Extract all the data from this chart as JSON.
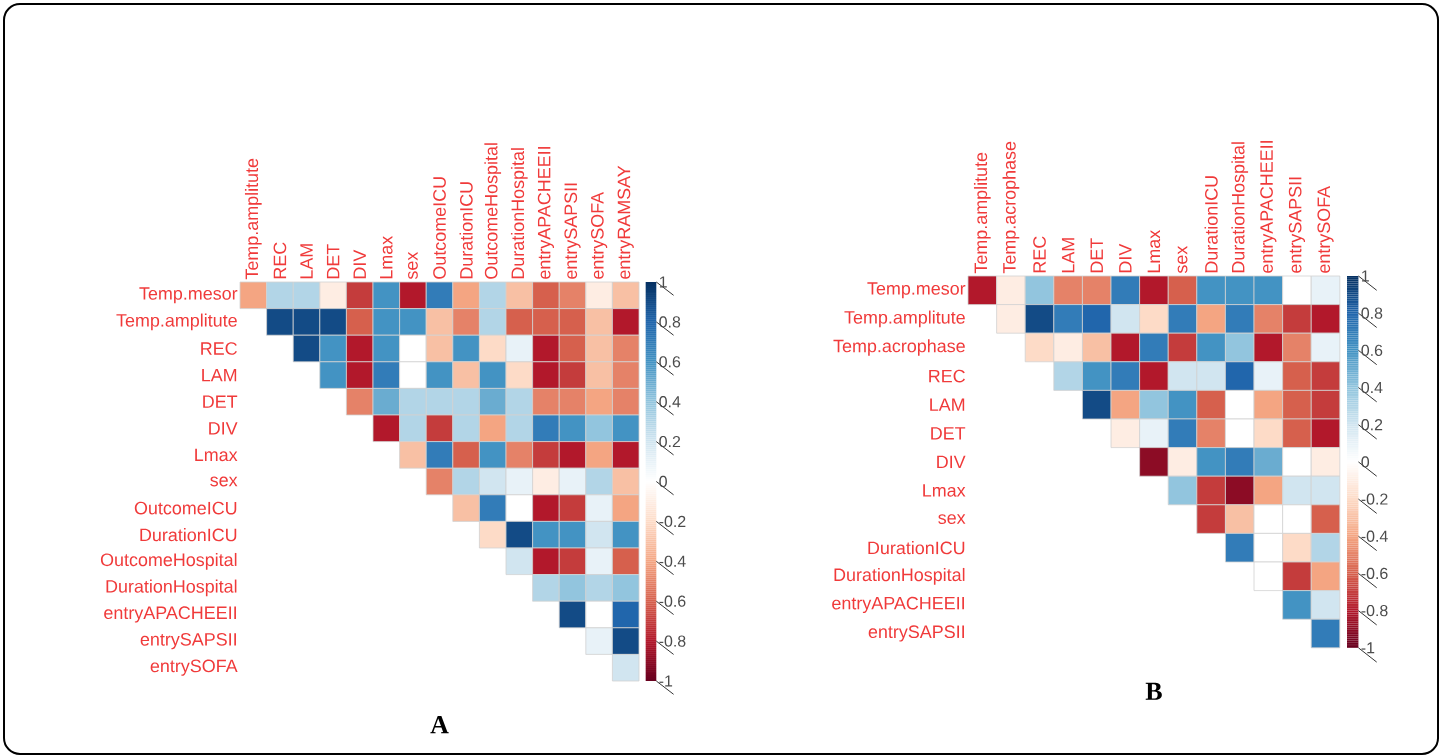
{
  "chart_data": [
    {
      "type": "heatmap",
      "categories": [
        "Temp.amplitute",
        "REC",
        "LAM",
        "DET",
        "DIV",
        "Lmax",
        "sex",
        "OutcomeICU",
        "DurationICU",
        "OutcomeHospital",
        "DurationHospital",
        "entryAPACHEEII",
        "entrySAPSII",
        "entrySOFA",
        "entryRAMSAY"
      ],
      "y_categories": [
        "Temp.mesor",
        "Temp.amplitute",
        "REC",
        "LAM",
        "DET",
        "DIV",
        "Lmax",
        "sex",
        "OutcomeICU",
        "DurationICU",
        "OutcomeHospital",
        "DurationHospital",
        "entryAPACHEEII",
        "entrySAPSII",
        "entrySOFA"
      ],
      "cells": [
        [
          -0.4,
          0.3,
          0.3,
          -0.1,
          -0.7,
          0.6,
          -0.8,
          0.7,
          -0.4,
          0.3,
          -0.3,
          -0.6,
          -0.5,
          -0.1,
          -0.3
        ],
        [
          null,
          0.9,
          0.9,
          0.9,
          -0.6,
          0.6,
          0.6,
          -0.3,
          -0.5,
          0.3,
          -0.6,
          -0.6,
          -0.6,
          -0.3,
          -0.8
        ],
        [
          null,
          null,
          0.9,
          0.6,
          -0.8,
          0.6,
          0,
          -0.3,
          0.6,
          -0.2,
          0.1,
          -0.8,
          -0.6,
          -0.3,
          -0.5
        ],
        [
          null,
          null,
          null,
          0.6,
          -0.8,
          0.7,
          0,
          0.6,
          -0.3,
          0.6,
          -0.2,
          -0.8,
          -0.7,
          -0.3,
          -0.5
        ],
        [
          null,
          null,
          null,
          null,
          -0.5,
          0.5,
          0.3,
          0.3,
          0.3,
          0.5,
          0.3,
          -0.5,
          -0.5,
          -0.4,
          -0.5
        ],
        [
          null,
          null,
          null,
          null,
          null,
          -0.8,
          0.3,
          -0.7,
          0.3,
          -0.4,
          0.3,
          0.7,
          0.6,
          0.4,
          0.6
        ],
        [
          null,
          null,
          null,
          null,
          null,
          null,
          -0.3,
          0.7,
          -0.6,
          0.6,
          -0.5,
          -0.7,
          -0.8,
          -0.4,
          -0.8
        ],
        [
          null,
          null,
          null,
          null,
          null,
          null,
          null,
          -0.5,
          0.3,
          0.2,
          0.1,
          -0.1,
          0.1,
          0.3,
          -0.3
        ],
        [
          null,
          null,
          null,
          null,
          null,
          null,
          null,
          null,
          -0.3,
          0.7,
          0,
          -0.8,
          -0.7,
          0.1,
          -0.4
        ],
        [
          null,
          null,
          null,
          null,
          null,
          null,
          null,
          null,
          null,
          -0.2,
          0.9,
          0.6,
          0.6,
          0.2,
          0.6
        ],
        [
          null,
          null,
          null,
          null,
          null,
          null,
          null,
          null,
          null,
          null,
          0.2,
          -0.8,
          -0.7,
          0.1,
          -0.6
        ],
        [
          null,
          null,
          null,
          null,
          null,
          null,
          null,
          null,
          null,
          null,
          null,
          0.3,
          0.4,
          0.3,
          0.4
        ],
        [
          null,
          null,
          null,
          null,
          null,
          null,
          null,
          null,
          null,
          null,
          null,
          null,
          0.9,
          0,
          0.8
        ],
        [
          null,
          null,
          null,
          null,
          null,
          null,
          null,
          null,
          null,
          null,
          null,
          null,
          null,
          0.1,
          0.9
        ],
        [
          null,
          null,
          null,
          null,
          null,
          null,
          null,
          null,
          null,
          null,
          null,
          null,
          null,
          null,
          0.2
        ]
      ],
      "clim": [
        -1,
        1
      ],
      "cticks": [
        -1,
        -0.8,
        -0.6,
        -0.4,
        -0.2,
        0,
        0.2,
        0.4,
        0.6,
        0.8,
        1
      ],
      "annotations": [
        "A"
      ]
    },
    {
      "type": "heatmap",
      "categories": [
        "Temp.amplitute",
        "Temp.acrophase",
        "REC",
        "LAM",
        "DET",
        "DIV",
        "Lmax",
        "sex",
        "DurationICU",
        "DurationHospital",
        "entryAPACHEEII",
        "entrySAPSII",
        "entrySOFA"
      ],
      "y_categories": [
        "Temp.mesor",
        "Temp.amplitute",
        "Temp.acrophase",
        "REC",
        "LAM",
        "DET",
        "DIV",
        "Lmax",
        "sex",
        "DurationICU",
        "DurationHospital",
        "entryAPACHEEII",
        "entrySAPSII"
      ],
      "cells": [
        [
          -0.8,
          -0.1,
          0.4,
          -0.5,
          -0.5,
          0.7,
          -0.8,
          -0.6,
          0.6,
          0.6,
          0.6,
          0,
          0.1
        ],
        [
          null,
          -0.1,
          0.9,
          0.7,
          0.8,
          0.2,
          -0.2,
          0.7,
          -0.4,
          0.7,
          -0.5,
          -0.7,
          -0.8
        ],
        [
          null,
          null,
          -0.2,
          -0.1,
          -0.3,
          -0.8,
          0.7,
          -0.7,
          0.6,
          0.4,
          -0.8,
          -0.5,
          0.1
        ],
        [
          null,
          null,
          null,
          0.3,
          0.6,
          0.7,
          -0.8,
          0.2,
          0.2,
          0.8,
          0.1,
          -0.6,
          -0.7
        ],
        [
          null,
          null,
          null,
          null,
          0.9,
          -0.4,
          0.4,
          0.6,
          -0.6,
          0,
          -0.4,
          -0.6,
          -0.7
        ],
        [
          null,
          null,
          null,
          null,
          null,
          -0.1,
          0.1,
          0.7,
          -0.5,
          0,
          -0.2,
          -0.6,
          -0.8
        ],
        [
          null,
          null,
          null,
          null,
          null,
          null,
          -0.9,
          -0.1,
          0.6,
          0.7,
          0.5,
          0,
          -0.1
        ],
        [
          null,
          null,
          null,
          null,
          null,
          null,
          null,
          0.4,
          -0.7,
          -0.9,
          -0.4,
          0.2,
          0.2
        ],
        [
          null,
          null,
          null,
          null,
          null,
          null,
          null,
          null,
          -0.7,
          -0.3,
          0,
          0,
          -0.6
        ],
        [
          null,
          null,
          null,
          null,
          null,
          null,
          null,
          null,
          null,
          0.7,
          0,
          -0.2,
          0.3
        ],
        [
          null,
          null,
          null,
          null,
          null,
          null,
          null,
          null,
          null,
          null,
          0,
          -0.7,
          -0.4
        ],
        [
          null,
          null,
          null,
          null,
          null,
          null,
          null,
          null,
          null,
          null,
          null,
          0.6,
          0.2
        ],
        [
          null,
          null,
          null,
          null,
          null,
          null,
          null,
          null,
          null,
          null,
          null,
          null,
          0.7
        ]
      ],
      "clim": [
        -1,
        1
      ],
      "cticks": [
        -1,
        -0.8,
        -0.6,
        -0.4,
        -0.2,
        0,
        0.2,
        0.4,
        0.6,
        0.8,
        1
      ],
      "annotations": [
        "B"
      ]
    }
  ]
}
